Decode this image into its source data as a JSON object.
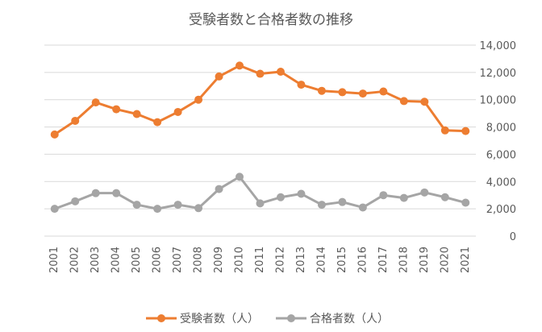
{
  "chart_data": {
    "type": "line",
    "title": "受験者数と合格者数の推移",
    "categories": [
      "2001",
      "2002",
      "2003",
      "2004",
      "2005",
      "2006",
      "2007",
      "2008",
      "2009",
      "2010",
      "2011",
      "2012",
      "2013",
      "2014",
      "2015",
      "2016",
      "2017",
      "2018",
      "2019",
      "2020",
      "2021"
    ],
    "ylim": [
      0,
      14000
    ],
    "yticks": [
      "0",
      "2,000",
      "4,000",
      "6,000",
      "8,000",
      "10,000",
      "12,000",
      "14,000"
    ],
    "ytick_values": [
      0,
      2000,
      4000,
      6000,
      8000,
      10000,
      12000,
      14000
    ],
    "y_axis_side": "right",
    "legend_position": "bottom",
    "series": [
      {
        "name": "受験者数（人）",
        "color": "#ed7d31",
        "values": [
          7450,
          8450,
          9800,
          9300,
          8950,
          8350,
          9100,
          10000,
          11700,
          12500,
          11900,
          12050,
          11100,
          10650,
          10550,
          10450,
          10600,
          9900,
          9850,
          7750,
          7700
        ]
      },
      {
        "name": "合格者数（人）",
        "color": "#a5a5a5",
        "values": [
          2000,
          2550,
          3150,
          3150,
          2300,
          2000,
          2300,
          2050,
          3450,
          4350,
          2400,
          2850,
          3100,
          2300,
          2500,
          2100,
          3000,
          2800,
          3200,
          2850,
          2450
        ]
      }
    ]
  }
}
